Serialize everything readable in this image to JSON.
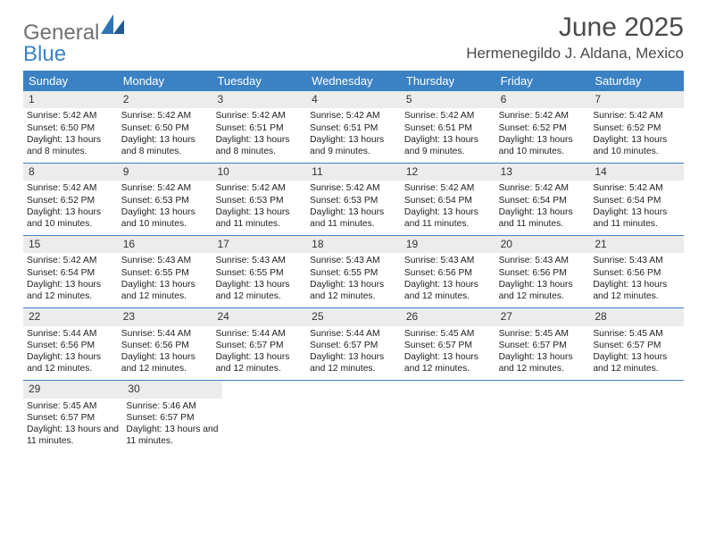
{
  "logo": {
    "general": "General",
    "blue": "Blue"
  },
  "title": "June 2025",
  "subtitle": "Hermenegildo J. Aldana, Mexico",
  "colors": {
    "header_bar": "#3b82c4",
    "daynum_bg": "#ececec",
    "text": "#222222",
    "title_text": "#4a4a4a",
    "logo_gray": "#6f7173",
    "logo_blue": "#3b82c4",
    "background": "#ffffff"
  },
  "weekdays": [
    "Sunday",
    "Monday",
    "Tuesday",
    "Wednesday",
    "Thursday",
    "Friday",
    "Saturday"
  ],
  "weeks": [
    [
      {
        "n": "1",
        "sr": "5:42 AM",
        "ss": "6:50 PM",
        "dl": "13 hours and 8 minutes."
      },
      {
        "n": "2",
        "sr": "5:42 AM",
        "ss": "6:50 PM",
        "dl": "13 hours and 8 minutes."
      },
      {
        "n": "3",
        "sr": "5:42 AM",
        "ss": "6:51 PM",
        "dl": "13 hours and 8 minutes."
      },
      {
        "n": "4",
        "sr": "5:42 AM",
        "ss": "6:51 PM",
        "dl": "13 hours and 9 minutes."
      },
      {
        "n": "5",
        "sr": "5:42 AM",
        "ss": "6:51 PM",
        "dl": "13 hours and 9 minutes."
      },
      {
        "n": "6",
        "sr": "5:42 AM",
        "ss": "6:52 PM",
        "dl": "13 hours and 10 minutes."
      },
      {
        "n": "7",
        "sr": "5:42 AM",
        "ss": "6:52 PM",
        "dl": "13 hours and 10 minutes."
      }
    ],
    [
      {
        "n": "8",
        "sr": "5:42 AM",
        "ss": "6:52 PM",
        "dl": "13 hours and 10 minutes."
      },
      {
        "n": "9",
        "sr": "5:42 AM",
        "ss": "6:53 PM",
        "dl": "13 hours and 10 minutes."
      },
      {
        "n": "10",
        "sr": "5:42 AM",
        "ss": "6:53 PM",
        "dl": "13 hours and 11 minutes."
      },
      {
        "n": "11",
        "sr": "5:42 AM",
        "ss": "6:53 PM",
        "dl": "13 hours and 11 minutes."
      },
      {
        "n": "12",
        "sr": "5:42 AM",
        "ss": "6:54 PM",
        "dl": "13 hours and 11 minutes."
      },
      {
        "n": "13",
        "sr": "5:42 AM",
        "ss": "6:54 PM",
        "dl": "13 hours and 11 minutes."
      },
      {
        "n": "14",
        "sr": "5:42 AM",
        "ss": "6:54 PM",
        "dl": "13 hours and 11 minutes."
      }
    ],
    [
      {
        "n": "15",
        "sr": "5:42 AM",
        "ss": "6:54 PM",
        "dl": "13 hours and 12 minutes."
      },
      {
        "n": "16",
        "sr": "5:43 AM",
        "ss": "6:55 PM",
        "dl": "13 hours and 12 minutes."
      },
      {
        "n": "17",
        "sr": "5:43 AM",
        "ss": "6:55 PM",
        "dl": "13 hours and 12 minutes."
      },
      {
        "n": "18",
        "sr": "5:43 AM",
        "ss": "6:55 PM",
        "dl": "13 hours and 12 minutes."
      },
      {
        "n": "19",
        "sr": "5:43 AM",
        "ss": "6:56 PM",
        "dl": "13 hours and 12 minutes."
      },
      {
        "n": "20",
        "sr": "5:43 AM",
        "ss": "6:56 PM",
        "dl": "13 hours and 12 minutes."
      },
      {
        "n": "21",
        "sr": "5:43 AM",
        "ss": "6:56 PM",
        "dl": "13 hours and 12 minutes."
      }
    ],
    [
      {
        "n": "22",
        "sr": "5:44 AM",
        "ss": "6:56 PM",
        "dl": "13 hours and 12 minutes."
      },
      {
        "n": "23",
        "sr": "5:44 AM",
        "ss": "6:56 PM",
        "dl": "13 hours and 12 minutes."
      },
      {
        "n": "24",
        "sr": "5:44 AM",
        "ss": "6:57 PM",
        "dl": "13 hours and 12 minutes."
      },
      {
        "n": "25",
        "sr": "5:44 AM",
        "ss": "6:57 PM",
        "dl": "13 hours and 12 minutes."
      },
      {
        "n": "26",
        "sr": "5:45 AM",
        "ss": "6:57 PM",
        "dl": "13 hours and 12 minutes."
      },
      {
        "n": "27",
        "sr": "5:45 AM",
        "ss": "6:57 PM",
        "dl": "13 hours and 12 minutes."
      },
      {
        "n": "28",
        "sr": "5:45 AM",
        "ss": "6:57 PM",
        "dl": "13 hours and 12 minutes."
      }
    ],
    [
      {
        "n": "29",
        "sr": "5:45 AM",
        "ss": "6:57 PM",
        "dl": "13 hours and 11 minutes."
      },
      {
        "n": "30",
        "sr": "5:46 AM",
        "ss": "6:57 PM",
        "dl": "13 hours and 11 minutes."
      },
      null,
      null,
      null,
      null,
      null
    ]
  ],
  "labels": {
    "sunrise": "Sunrise: ",
    "sunset": "Sunset: ",
    "daylight": "Daylight: "
  }
}
